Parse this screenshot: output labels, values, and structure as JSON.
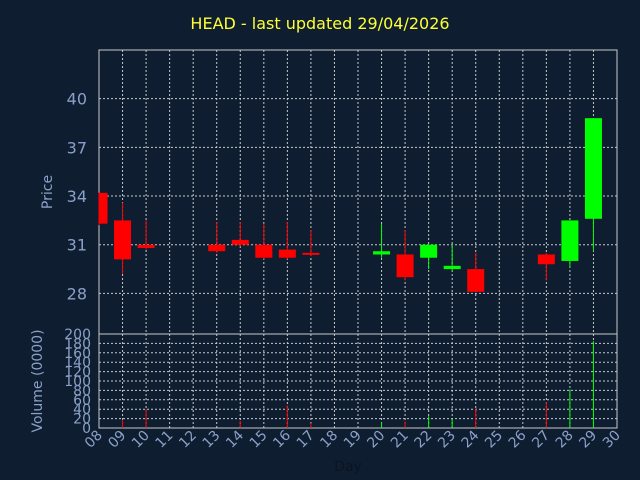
{
  "title": "HEAD - last updated 29/04/2026",
  "colors": {
    "background": "#0e1e30",
    "title": "#ffff33",
    "up": "#00ff00",
    "down": "#ff0000",
    "grid": "#c8c8c8",
    "axis_text": "#8aa0c8"
  },
  "chart_data": [
    {
      "type": "candlestick",
      "panel": "price",
      "ylabel": "Price",
      "ylim": [
        25.5,
        43
      ],
      "y_ticks": [
        28,
        31,
        34,
        37,
        40
      ],
      "x_ticks": [
        "08",
        "09",
        "10",
        "11",
        "12",
        "13",
        "14",
        "15",
        "16",
        "17",
        "18",
        "19",
        "20",
        "21",
        "22",
        "23",
        "24",
        "25",
        "26",
        "27",
        "28",
        "29",
        "30"
      ],
      "candles": [
        {
          "day": "08",
          "open": 34.2,
          "high": 34.2,
          "low": 32.2,
          "close": 32.3
        },
        {
          "day": "09",
          "open": 32.5,
          "high": 33.6,
          "low": 29.2,
          "close": 30.1
        },
        {
          "day": "10",
          "open": 31.0,
          "high": 32.5,
          "low": 30.7,
          "close": 30.8
        },
        {
          "day": "13",
          "open": 31.0,
          "high": 32.4,
          "low": 30.5,
          "close": 30.6
        },
        {
          "day": "14",
          "open": 31.3,
          "high": 32.4,
          "low": 30.9,
          "close": 31.0
        },
        {
          "day": "15",
          "open": 31.0,
          "high": 32.3,
          "low": 30.1,
          "close": 30.2
        },
        {
          "day": "16",
          "open": 30.7,
          "high": 32.4,
          "low": 30.1,
          "close": 30.2
        },
        {
          "day": "17",
          "open": 30.5,
          "high": 31.9,
          "low": 30.3,
          "close": 30.4
        },
        {
          "day": "20",
          "open": 30.4,
          "high": 32.3,
          "low": 30.2,
          "close": 30.6
        },
        {
          "day": "21",
          "open": 30.4,
          "high": 31.9,
          "low": 28.8,
          "close": 29.0
        },
        {
          "day": "22",
          "open": 30.2,
          "high": 31.0,
          "low": 29.5,
          "close": 31.0
        },
        {
          "day": "23",
          "open": 29.5,
          "high": 31.0,
          "low": 29.4,
          "close": 29.7
        },
        {
          "day": "24",
          "open": 29.5,
          "high": 30.5,
          "low": 28.1,
          "close": 28.1
        },
        {
          "day": "27",
          "open": 30.4,
          "high": 30.5,
          "low": 28.8,
          "close": 29.8
        },
        {
          "day": "28",
          "open": 30.0,
          "high": 32.5,
          "low": 29.6,
          "close": 32.5
        },
        {
          "day": "29",
          "open": 32.6,
          "high": 38.8,
          "low": 30.6,
          "close": 38.8
        }
      ]
    },
    {
      "type": "bar",
      "panel": "volume",
      "ylabel": "Volume (0000)",
      "xlabel": "Day",
      "ylim": [
        0,
        200
      ],
      "y_ticks": [
        0,
        20,
        40,
        60,
        80,
        100,
        120,
        140,
        160,
        180,
        200
      ],
      "x_ticks": [
        "08",
        "09",
        "10",
        "11",
        "12",
        "13",
        "14",
        "15",
        "16",
        "17",
        "18",
        "19",
        "20",
        "21",
        "22",
        "23",
        "24",
        "25",
        "26",
        "27",
        "28",
        "29",
        "30"
      ],
      "bars": [
        {
          "day": "09",
          "value": 18,
          "dir": "down"
        },
        {
          "day": "10",
          "value": 40,
          "dir": "down"
        },
        {
          "day": "14",
          "value": 15,
          "dir": "down"
        },
        {
          "day": "16",
          "value": 48,
          "dir": "down"
        },
        {
          "day": "17",
          "value": 10,
          "dir": "down"
        },
        {
          "day": "20",
          "value": 12,
          "dir": "up"
        },
        {
          "day": "21",
          "value": 14,
          "dir": "down"
        },
        {
          "day": "22",
          "value": 25,
          "dir": "up"
        },
        {
          "day": "23",
          "value": 20,
          "dir": "up"
        },
        {
          "day": "24",
          "value": 42,
          "dir": "down"
        },
        {
          "day": "27",
          "value": 55,
          "dir": "down"
        },
        {
          "day": "28",
          "value": 82,
          "dir": "up"
        },
        {
          "day": "29",
          "value": 185,
          "dir": "up"
        }
      ]
    }
  ]
}
